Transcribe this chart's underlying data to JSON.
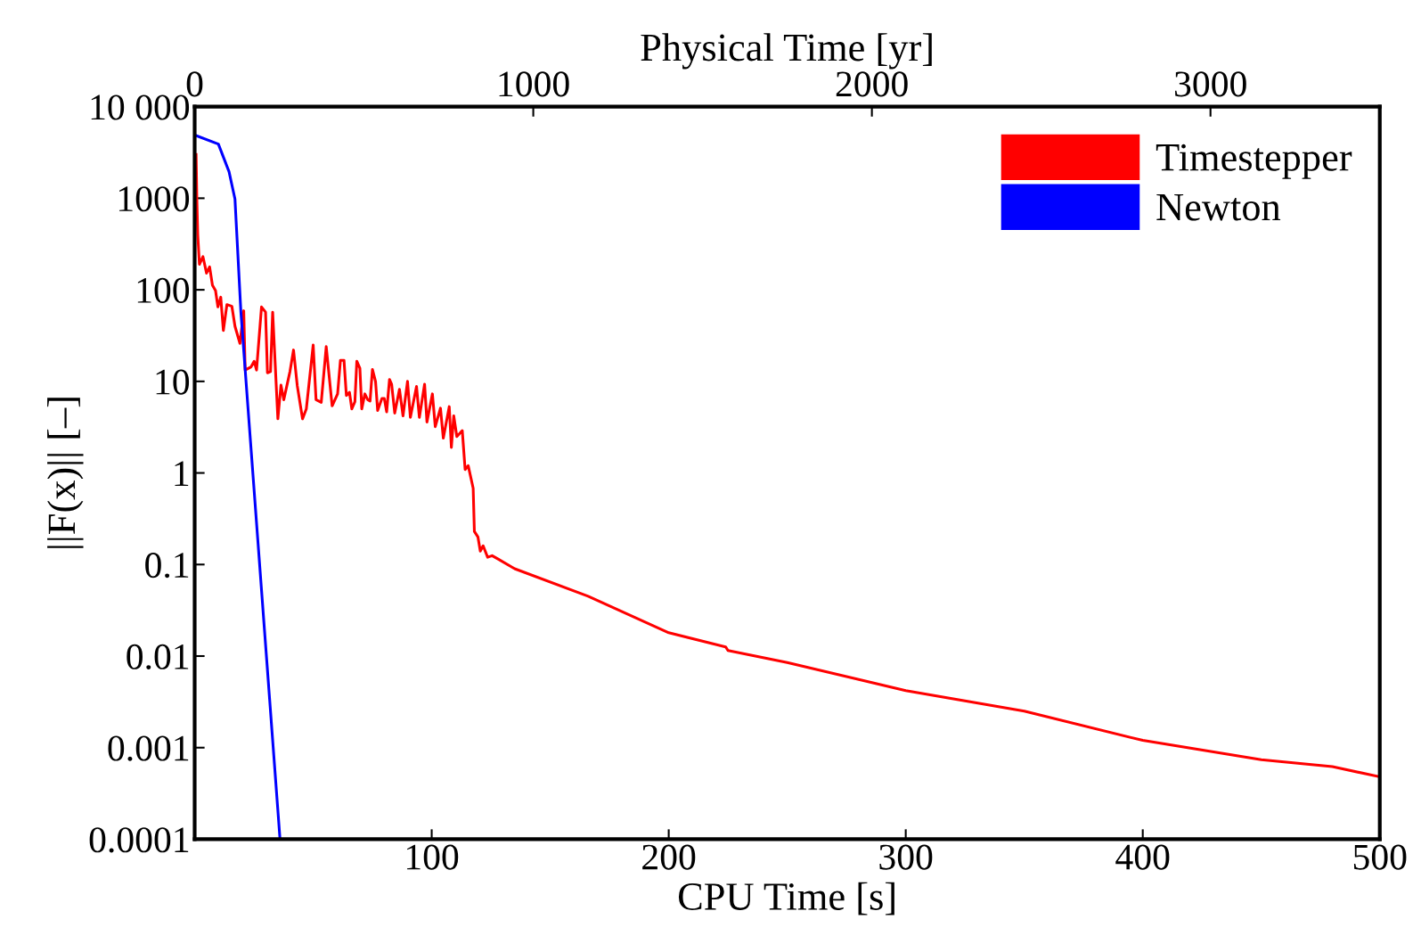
{
  "chart_data": {
    "type": "line",
    "xlabel": "CPU Time [s]",
    "ylabel": "||F(x)|| [–]",
    "x2label": "Physical Time [yr]",
    "xlim": [
      0,
      500
    ],
    "xticks": [
      100,
      200,
      300,
      400,
      500
    ],
    "x2lim": [
      0,
      3500
    ],
    "x2ticks": [
      0,
      1000,
      2000,
      3000
    ],
    "ylim": [
      0.0001,
      10000
    ],
    "log": "y",
    "yticks": [
      {
        "value": 0.0001,
        "label": "0.0001"
      },
      {
        "value": 0.001,
        "label": "0.001"
      },
      {
        "value": 0.01,
        "label": "0.01"
      },
      {
        "value": 0.1,
        "label": "0.1"
      },
      {
        "value": 1,
        "label": "1"
      },
      {
        "value": 10,
        "label": "10"
      },
      {
        "value": 100,
        "label": "100"
      },
      {
        "value": 1000,
        "label": "1000"
      },
      {
        "value": 10000,
        "label": "10 000"
      }
    ],
    "grid": false,
    "legend": "top right",
    "marker": "none",
    "line_style": "solid",
    "series": [
      {
        "name": "Timestepper",
        "color": "#ff0000",
        "x": [
          0.6,
          0.9,
          1.3,
          2,
          3.5,
          5,
          6.3,
          7.5,
          8.8,
          9.8,
          11,
          12.1,
          13.6,
          15.7,
          17,
          19.1,
          20.7,
          21.3,
          23.8,
          25.1,
          26.1,
          28.2,
          29.9,
          30.7,
          32,
          32.9,
          35.1,
          36.4,
          37.6,
          40.2,
          41.7,
          43.3,
          45.5,
          47.1,
          50,
          51.2,
          53.4,
          55.5,
          58,
          60.3,
          61.5,
          63,
          64,
          65.3,
          66.3,
          67.6,
          68.4,
          69.7,
          70.5,
          71.8,
          73,
          74,
          75,
          76.3,
          77.2,
          79,
          80,
          81,
          82.2,
          83.1,
          84.4,
          86.4,
          87.9,
          89.8,
          91,
          93.6,
          94.8,
          97,
          98,
          100.3,
          101.5,
          103.7,
          104.9,
          107.4,
          108.3,
          109.3,
          110.6,
          112.9,
          114.1,
          115.4,
          117.5,
          118,
          119.5,
          120.5,
          121.7,
          123.6,
          125.5,
          128,
          135,
          166,
          200,
          224,
          225,
          250,
          300,
          350,
          400,
          450,
          480,
          500
        ],
        "values": [
          3000,
          1000,
          400,
          190,
          230,
          152,
          178,
          112,
          98,
          65,
          83,
          36,
          69,
          66,
          40,
          26,
          59,
          13.3,
          14.4,
          16.6,
          13.3,
          65,
          57,
          12.4,
          12.8,
          57,
          3.9,
          9.1,
          6.3,
          12.8,
          22,
          8.9,
          3.9,
          5,
          25,
          6.3,
          5.9,
          24,
          5.4,
          7.3,
          17,
          17,
          7,
          7.6,
          5,
          6,
          16.6,
          13.9,
          5,
          7.3,
          6.3,
          6.1,
          13.5,
          10,
          4.8,
          6.5,
          6.5,
          4.65,
          10.5,
          9.3,
          4.5,
          8.2,
          4.2,
          10,
          4.05,
          8.8,
          4.05,
          9.3,
          3.6,
          7.3,
          3.2,
          5.1,
          2.4,
          5.3,
          1.9,
          4.2,
          2.5,
          2.9,
          1.09,
          1.2,
          0.68,
          0.23,
          0.2,
          0.14,
          0.16,
          0.12,
          0.125,
          0.115,
          0.09,
          0.045,
          0.018,
          0.0126,
          0.0115,
          0.0085,
          0.0042,
          0.0025,
          0.0012,
          0.00074,
          0.00062,
          0.00048
        ]
      },
      {
        "name": "Newton",
        "color": "#0000ff",
        "x": [
          0,
          10,
          14.5,
          17,
          19.5,
          36
        ],
        "values": [
          4900,
          3900,
          1950,
          980,
          57,
          0.0001
        ]
      }
    ]
  }
}
